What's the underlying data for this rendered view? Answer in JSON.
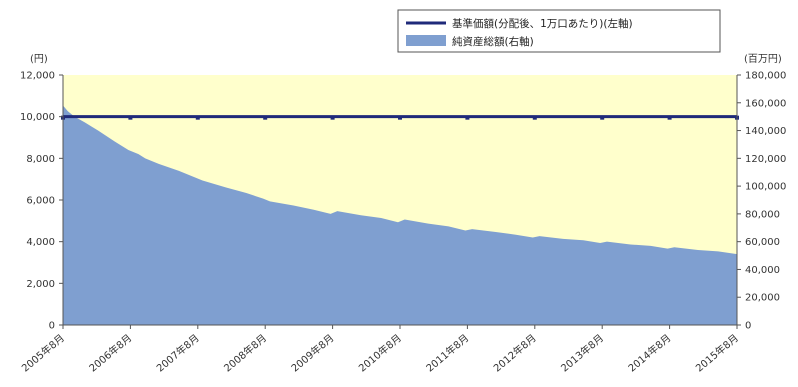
{
  "chart_data": {
    "type": "line+area",
    "left_axis": {
      "unit": "(円)",
      "ylim": [
        0,
        12000
      ],
      "ticks": [
        "0",
        "2,000",
        "4,000",
        "6,000",
        "8,000",
        "10,000",
        "12,000"
      ],
      "tick_values": [
        0,
        2000,
        4000,
        6000,
        8000,
        10000,
        12000
      ]
    },
    "right_axis": {
      "unit": "(百万円)",
      "ylim": [
        0,
        180000
      ],
      "ticks": [
        "0",
        "20,000",
        "40,000",
        "60,000",
        "80,000",
        "100,000",
        "120,000",
        "140,000",
        "160,000",
        "180,000"
      ],
      "tick_values": [
        0,
        20000,
        40000,
        60000,
        80000,
        100000,
        120000,
        140000,
        160000,
        180000
      ]
    },
    "x_labels": [
      "2005年8月",
      "2006年8月",
      "2007年8月",
      "2008年8月",
      "2009年8月",
      "2010年8月",
      "2011年8月",
      "2012年8月",
      "2013年8月",
      "2014年8月",
      "2015年8月"
    ],
    "x_range": [
      2005.58,
      2015.58
    ],
    "legend": {
      "placement": "top-right",
      "entries": [
        {
          "name": "基準価額(分配後、1万口あたり)(左軸)",
          "kind": "line",
          "color": "#1f2a7a"
        },
        {
          "name": "純資産総額(右軸)",
          "kind": "area",
          "color": "#7f9fd0"
        }
      ]
    },
    "series": [
      {
        "name": "基準価額(分配後、1万口あたり)(左軸)",
        "axis": "left",
        "color": "#1f2a7a",
        "x": [
          2005.58,
          2006.58,
          2007.58,
          2008.58,
          2009.58,
          2010.58,
          2011.58,
          2012.58,
          2013.58,
          2014.58,
          2015.58
        ],
        "y": [
          10000,
          10000,
          10000,
          10000,
          10000,
          10000,
          10000,
          10000,
          10000,
          10000,
          10000
        ]
      },
      {
        "name": "純資産総額(右軸)",
        "axis": "right",
        "color": "#7f9fd0",
        "x": [
          2005.58,
          2005.65,
          2005.75,
          2005.9,
          2006.1,
          2006.35,
          2006.55,
          2006.7,
          2006.8,
          2007.0,
          2007.3,
          2007.55,
          2007.65,
          2008.0,
          2008.3,
          2008.55,
          2008.65,
          2009.0,
          2009.3,
          2009.55,
          2009.65,
          2010.0,
          2010.3,
          2010.55,
          2010.65,
          2011.0,
          2011.3,
          2011.55,
          2011.65,
          2012.0,
          2012.3,
          2012.55,
          2012.65,
          2013.0,
          2013.3,
          2013.55,
          2013.65,
          2014.0,
          2014.3,
          2014.55,
          2014.65,
          2015.0,
          2015.3,
          2015.58
        ],
        "y": [
          158000,
          154000,
          150000,
          146000,
          140000,
          132000,
          126000,
          123000,
          120000,
          116000,
          111000,
          106000,
          104000,
          99000,
          95000,
          91000,
          89000,
          86000,
          83000,
          80000,
          82000,
          79000,
          77000,
          74000,
          76000,
          73000,
          71000,
          68000,
          69000,
          67000,
          65000,
          63000,
          64000,
          62000,
          61000,
          59000,
          60000,
          58000,
          57000,
          55000,
          56000,
          54000,
          53000,
          51000
        ]
      }
    ],
    "background": {
      "plot_fill": "#ffffcc"
    }
  }
}
